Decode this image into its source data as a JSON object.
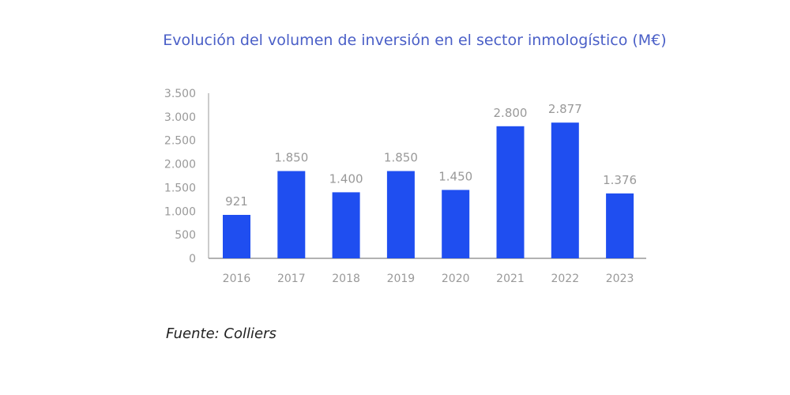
{
  "chart_data": {
    "type": "bar",
    "title": "Evolución del volumen de inversión en el sector inmologístico (M€)",
    "categories": [
      "2016",
      "2017",
      "2018",
      "2019",
      "2020",
      "2021",
      "2022",
      "2023"
    ],
    "values": [
      921,
      1850,
      1400,
      1850,
      1450,
      2800,
      2877,
      1376
    ],
    "value_labels": [
      "921",
      "1.850",
      "1.400",
      "1.850",
      "1.450",
      "2.800",
      "2.877",
      "1.376"
    ],
    "yticks": [
      0,
      500,
      1000,
      1500,
      2000,
      2500,
      3000,
      3500
    ],
    "ytick_labels": [
      "0",
      "500",
      "1.000",
      "1.500",
      "2.000",
      "2.500",
      "3.000",
      "3.500"
    ],
    "ylim": [
      0,
      3500
    ],
    "xlabel": "",
    "ylabel": "",
    "grid": false,
    "bar_color": "#1f4ef0"
  },
  "source": "Fuente: Colliers"
}
